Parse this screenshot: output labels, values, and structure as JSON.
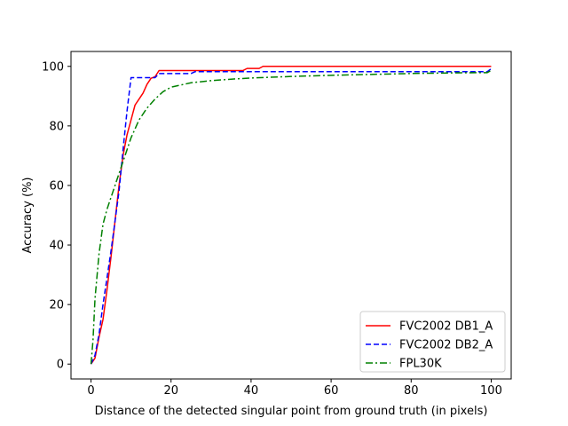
{
  "chart_data": {
    "type": "line",
    "title": "",
    "xlabel": "Distance of the detected singular point from ground truth (in pixels)",
    "ylabel": "Accuracy (%)",
    "xlim": [
      -5,
      105
    ],
    "ylim": [
      -5,
      105
    ],
    "xticks": [
      0,
      20,
      40,
      60,
      80,
      100
    ],
    "yticks": [
      0,
      20,
      40,
      60,
      80,
      100
    ],
    "grid": false,
    "legend_position": "lower-right",
    "series": [
      {
        "name": "FVC2002 DB1_A",
        "color": "#ff0000",
        "line_style": "solid",
        "points": [
          [
            0,
            0
          ],
          [
            1,
            2
          ],
          [
            2,
            9
          ],
          [
            3,
            15
          ],
          [
            4,
            25
          ],
          [
            5,
            36
          ],
          [
            6,
            48
          ],
          [
            7,
            60
          ],
          [
            8,
            70
          ],
          [
            9,
            77
          ],
          [
            10,
            82
          ],
          [
            11,
            87
          ],
          [
            12,
            89
          ],
          [
            13,
            91
          ],
          [
            14,
            94
          ],
          [
            15,
            96
          ],
          [
            16,
            96.5
          ],
          [
            17,
            98.6
          ],
          [
            20,
            98.6
          ],
          [
            30,
            98.6
          ],
          [
            38,
            98.6
          ],
          [
            39,
            99.3
          ],
          [
            42,
            99.3
          ],
          [
            43,
            100
          ],
          [
            60,
            100
          ],
          [
            80,
            100
          ],
          [
            100,
            100
          ]
        ]
      },
      {
        "name": "FVC2002 DB2_A",
        "color": "#0000ff",
        "line_style": "dashed",
        "points": [
          [
            0,
            0
          ],
          [
            1,
            3
          ],
          [
            2,
            10
          ],
          [
            3,
            20
          ],
          [
            4,
            29
          ],
          [
            5,
            38
          ],
          [
            6,
            48
          ],
          [
            7,
            58
          ],
          [
            8,
            72
          ],
          [
            9,
            85
          ],
          [
            10,
            96.2
          ],
          [
            16,
            96.2
          ],
          [
            17,
            97.6
          ],
          [
            25,
            97.6
          ],
          [
            26,
            98.2
          ],
          [
            40,
            98.2
          ],
          [
            60,
            98.2
          ],
          [
            80,
            98.2
          ],
          [
            99,
            98.2
          ],
          [
            100,
            99.2
          ]
        ]
      },
      {
        "name": "FPL30K",
        "color": "#008000",
        "line_style": "dash-dot",
        "points": [
          [
            0,
            0
          ],
          [
            0.5,
            8
          ],
          [
            1,
            22
          ],
          [
            2,
            37
          ],
          [
            3,
            47
          ],
          [
            4,
            52
          ],
          [
            5,
            56
          ],
          [
            6,
            60
          ],
          [
            7,
            64
          ],
          [
            8,
            68
          ],
          [
            9,
            72
          ],
          [
            10,
            76
          ],
          [
            12,
            82
          ],
          [
            14,
            86
          ],
          [
            16,
            89
          ],
          [
            18,
            91.5
          ],
          [
            20,
            93
          ],
          [
            25,
            94.5
          ],
          [
            30,
            95.2
          ],
          [
            35,
            95.7
          ],
          [
            40,
            96.1
          ],
          [
            50,
            96.6
          ],
          [
            60,
            97
          ],
          [
            70,
            97.3
          ],
          [
            80,
            97.6
          ],
          [
            90,
            97.8
          ],
          [
            99,
            97.9
          ],
          [
            100,
            98.6
          ]
        ]
      }
    ]
  }
}
